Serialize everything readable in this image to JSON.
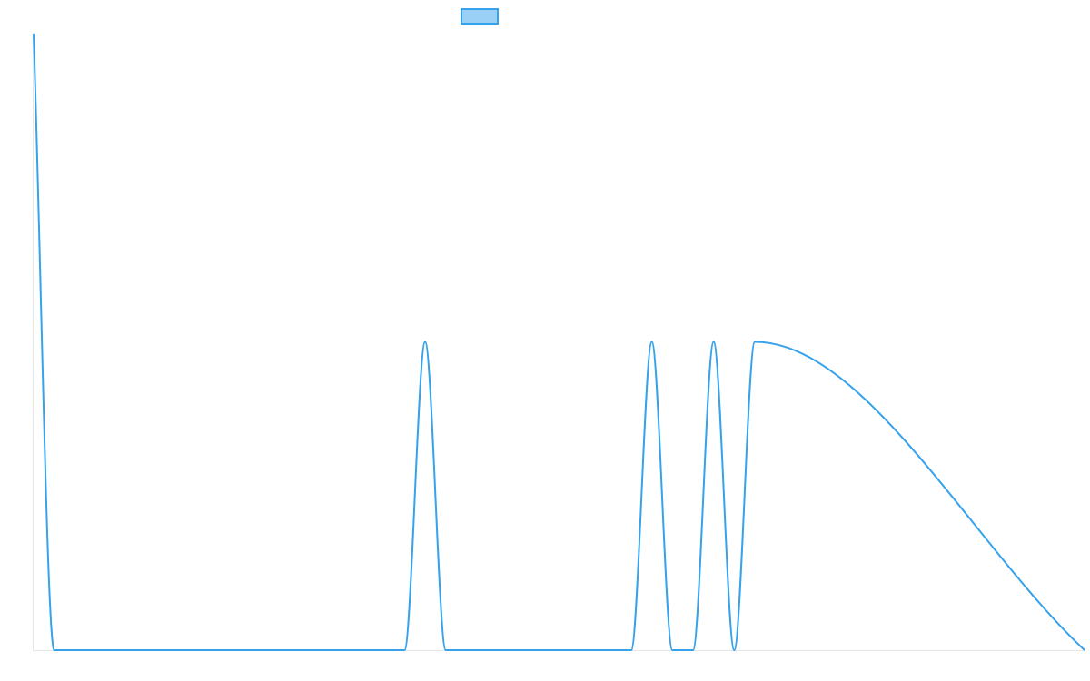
{
  "chart_data": {
    "type": "line",
    "title": "",
    "xlabel": "",
    "ylabel": "",
    "xlim": [
      0,
      51
    ],
    "ylim": [
      0,
      2
    ],
    "grid": false,
    "legend": "top-center",
    "series": [
      {
        "name": "",
        "color": "#36a2eb",
        "fill": "#9ad0f5",
        "x": [
          0,
          1,
          18,
          19,
          20,
          29,
          30,
          31,
          32,
          33,
          34,
          35,
          51
        ],
        "y": [
          2,
          0,
          0,
          1,
          0,
          0,
          1,
          0,
          0,
          1,
          0,
          1,
          0
        ]
      }
    ]
  }
}
